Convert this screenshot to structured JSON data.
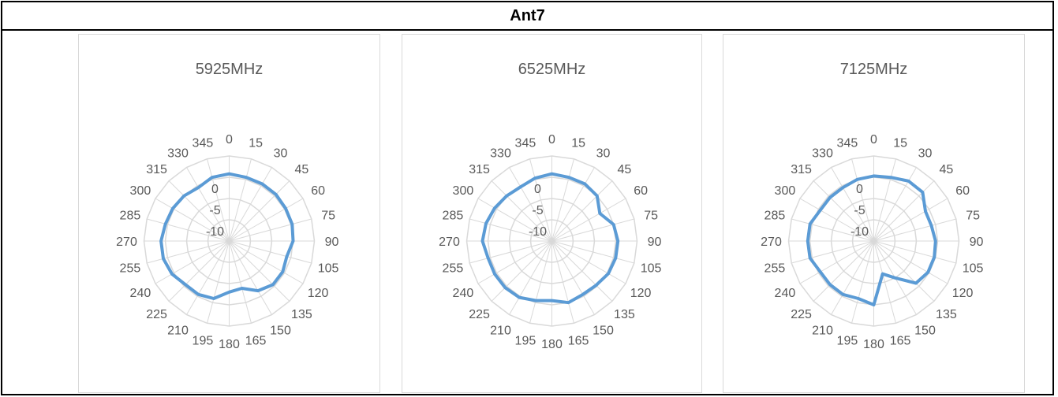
{
  "table": {
    "title": "Ant7"
  },
  "chart_data": [
    {
      "type": "radar",
      "title": "5925MHz",
      "angles": [
        0,
        15,
        30,
        45,
        60,
        75,
        90,
        105,
        120,
        135,
        150,
        165,
        180,
        195,
        210,
        225,
        240,
        255,
        270,
        285,
        300,
        315,
        330,
        345
      ],
      "radial_ticks": [
        0,
        -5,
        -10
      ],
      "rlim": [
        -15,
        5
      ],
      "series": [
        {
          "color": "#5b9bd5",
          "values": [
            0.8,
            0.5,
            0.5,
            0.5,
            0.3,
            0.3,
            0.0,
            -1.0,
            -0.5,
            -0.5,
            -1.5,
            -3.5,
            -3.0,
            -1.0,
            -0.5,
            -0.5,
            0.5,
            1.0,
            1.0,
            0.5,
            0.3,
            0.0,
            -0.5,
            0.5
          ]
        }
      ],
      "grid": true
    },
    {
      "type": "radar",
      "title": "6525MHz",
      "angles": [
        0,
        15,
        30,
        45,
        60,
        75,
        90,
        105,
        120,
        135,
        150,
        165,
        180,
        195,
        210,
        225,
        240,
        255,
        270,
        285,
        300,
        315,
        330,
        345
      ],
      "radial_ticks": [
        0,
        -5,
        -10
      ],
      "rlim": [
        -15,
        5
      ],
      "series": [
        {
          "color": "#5b9bd5",
          "values": [
            0.8,
            0.5,
            0.5,
            0.0,
            -2.0,
            0.0,
            0.5,
            0.5,
            0.3,
            -0.3,
            -0.5,
            0.0,
            -1.0,
            -0.5,
            0.3,
            0.5,
            0.5,
            0.5,
            1.3,
            1.0,
            0.5,
            0.0,
            -0.3,
            0.3
          ]
        }
      ],
      "grid": true
    },
    {
      "type": "radar",
      "title": "7125MHz",
      "angles": [
        0,
        15,
        30,
        45,
        60,
        75,
        90,
        105,
        120,
        135,
        150,
        165,
        180,
        195,
        210,
        225,
        240,
        255,
        270,
        285,
        300,
        315,
        330,
        345
      ],
      "radial_ticks": [
        0,
        -5,
        -10
      ],
      "rlim": [
        -15,
        5
      ],
      "series": [
        {
          "color": "#5b9bd5",
          "values": [
            0.3,
            0.5,
            1.3,
            1.2,
            -1.0,
            -1.0,
            -0.5,
            -0.3,
            -0.3,
            -1.0,
            -5.0,
            -7.0,
            0.0,
            -1.0,
            -0.5,
            -0.5,
            -0.5,
            0.5,
            0.5,
            0.5,
            -0.5,
            -0.5,
            -0.5,
            0.0
          ]
        }
      ],
      "grid": true
    }
  ]
}
